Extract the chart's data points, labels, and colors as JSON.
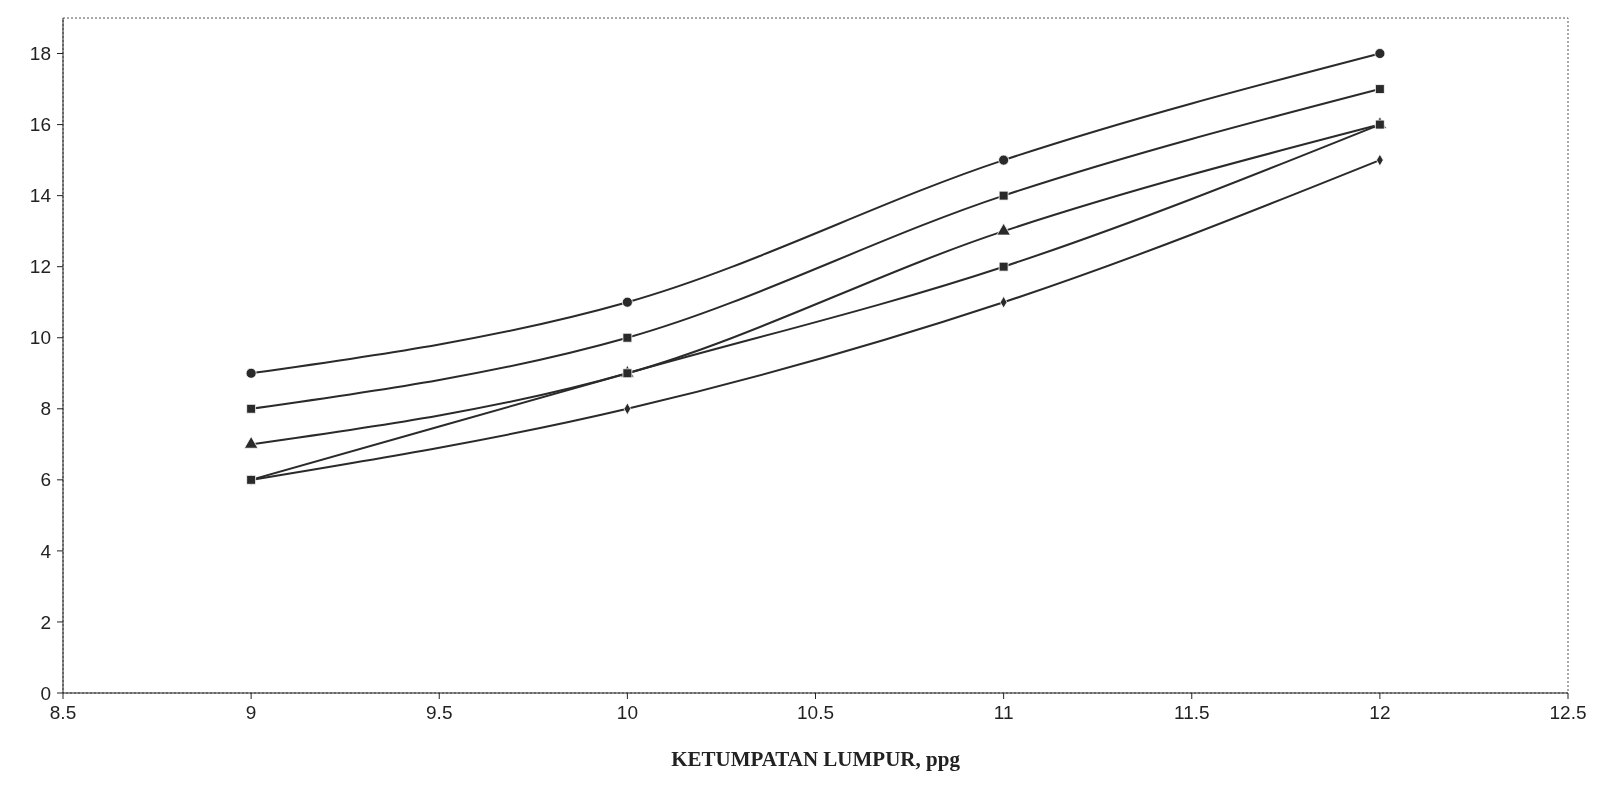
{
  "chart_data": {
    "type": "line",
    "xlabel": "KETUMPATAN LUMPUR, ppg",
    "x": [
      9,
      10,
      11,
      12
    ],
    "series": [
      {
        "color": "#2a2a2a",
        "values": [
          9,
          11,
          15,
          18
        ],
        "marker": "circle"
      },
      {
        "color": "#2a2a2a",
        "values": [
          8,
          10,
          14,
          17
        ],
        "marker": "square"
      },
      {
        "color": "#2a2a2a",
        "values": [
          7,
          9,
          13,
          16
        ],
        "marker": "triangle"
      },
      {
        "color": "#2a2a2a",
        "values": [
          6,
          8,
          11,
          15
        ],
        "marker": "diamond"
      },
      {
        "color": "#2a2a2a",
        "values": [
          6,
          9,
          12,
          16
        ],
        "marker": "square"
      }
    ],
    "xlim": [
      8.5,
      12.5
    ],
    "xticks": [
      8.5,
      9,
      9.5,
      10,
      10.5,
      11,
      11.5,
      12,
      12.5
    ],
    "ylim": [
      0,
      19
    ],
    "yticks": [
      0,
      2,
      4,
      6,
      8,
      10,
      12,
      14,
      16,
      18
    ],
    "grid": false
  }
}
